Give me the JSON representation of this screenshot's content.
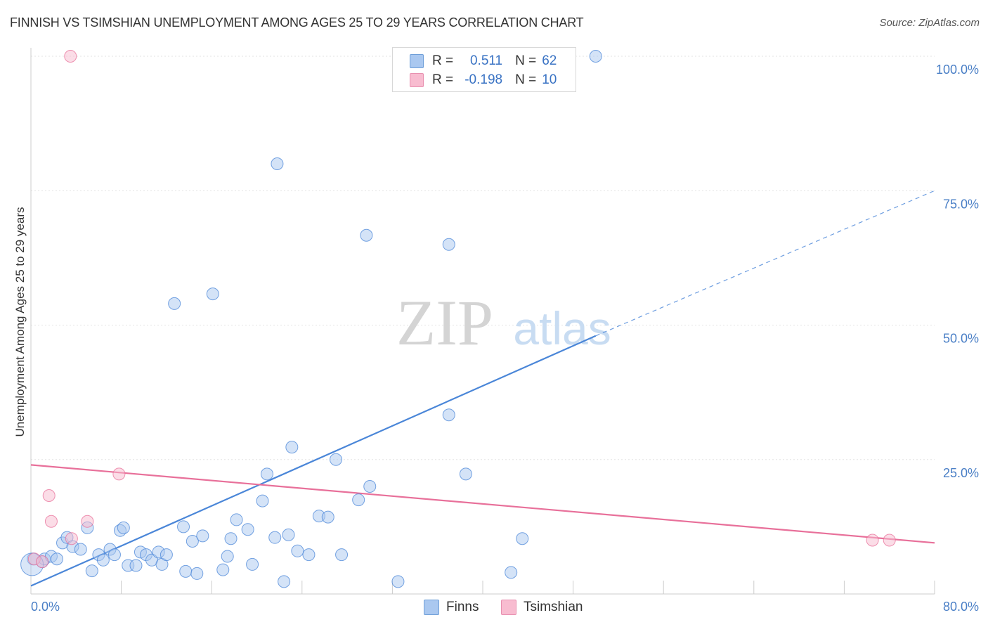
{
  "title": "FINNISH VS TSIMSHIAN UNEMPLOYMENT AMONG AGES 25 TO 29 YEARS CORRELATION CHART",
  "source": "Source: ZipAtlas.com",
  "watermark": {
    "zip": "ZIP",
    "atlas": "atlas"
  },
  "legend": {
    "rows": [
      {
        "r_label": "R =",
        "r_value": "0.511",
        "n_label": "N =",
        "n_value": "62",
        "color": "#aac8f0"
      },
      {
        "r_label": "R =",
        "r_value": "-0.198",
        "n_label": "N =",
        "n_value": "10",
        "color": "#f8bcd0"
      }
    ]
  },
  "bottom_legend": [
    {
      "label": "Finns",
      "color": "#aac8f0"
    },
    {
      "label": "Tsimshian",
      "color": "#f8bcd0"
    }
  ],
  "chart_data": {
    "type": "scatter",
    "title": "FINNISH VS TSIMSHIAN UNEMPLOYMENT AMONG AGES 25 TO 29 YEARS CORRELATION CHART",
    "xlabel": "",
    "ylabel": "Unemployment Among Ages 25 to 29 years",
    "xlim": [
      0,
      80
    ],
    "ylim": [
      0,
      100
    ],
    "x_tick_labels": [
      "0.0%",
      "80.0%"
    ],
    "y_ticks": [
      25,
      50,
      75,
      100
    ],
    "y_tick_labels": [
      "25.0%",
      "50.0%",
      "75.0%",
      "100.0%"
    ],
    "series": [
      {
        "name": "Finns",
        "color": "#4a86d8",
        "fill": "#aac8f0",
        "points": [
          [
            0.2,
            6.5
          ],
          [
            1.0,
            6.0
          ],
          [
            1.2,
            6.5
          ],
          [
            1.8,
            7.0
          ],
          [
            2.3,
            6.5
          ],
          [
            2.8,
            9.5
          ],
          [
            3.2,
            10.5
          ],
          [
            3.7,
            8.8
          ],
          [
            4.4,
            8.3
          ],
          [
            5.0,
            12.3
          ],
          [
            5.4,
            4.3
          ],
          [
            6.0,
            7.3
          ],
          [
            6.4,
            6.3
          ],
          [
            7.0,
            8.3
          ],
          [
            7.4,
            7.3
          ],
          [
            7.9,
            11.8
          ],
          [
            8.2,
            12.3
          ],
          [
            8.6,
            5.3
          ],
          [
            9.3,
            5.3
          ],
          [
            9.7,
            7.8
          ],
          [
            10.2,
            7.3
          ],
          [
            10.7,
            6.3
          ],
          [
            11.3,
            7.8
          ],
          [
            11.6,
            5.5
          ],
          [
            12.0,
            7.3
          ],
          [
            13.5,
            12.5
          ],
          [
            13.7,
            4.2
          ],
          [
            14.3,
            9.8
          ],
          [
            14.7,
            3.8
          ],
          [
            15.2,
            10.8
          ],
          [
            17.0,
            4.5
          ],
          [
            17.4,
            7.0
          ],
          [
            17.7,
            10.3
          ],
          [
            18.2,
            13.8
          ],
          [
            19.2,
            12.0
          ],
          [
            19.6,
            5.5
          ],
          [
            20.5,
            17.3
          ],
          [
            20.9,
            22.3
          ],
          [
            21.6,
            10.5
          ],
          [
            22.4,
            2.3
          ],
          [
            22.8,
            11.0
          ],
          [
            23.1,
            27.3
          ],
          [
            23.6,
            8.0
          ],
          [
            24.6,
            7.3
          ],
          [
            25.5,
            14.5
          ],
          [
            26.3,
            14.3
          ],
          [
            27.0,
            25.0
          ],
          [
            27.5,
            7.3
          ],
          [
            29.0,
            17.5
          ],
          [
            30.0,
            20.0
          ],
          [
            32.5,
            2.3
          ],
          [
            37.0,
            33.3
          ],
          [
            38.5,
            22.3
          ],
          [
            42.5,
            4.0
          ],
          [
            43.5,
            10.3
          ],
          [
            12.7,
            54.0
          ],
          [
            16.1,
            55.8
          ],
          [
            21.8,
            80.0
          ],
          [
            29.7,
            66.7
          ],
          [
            37.0,
            65.0
          ],
          [
            50.0,
            100.0
          ],
          [
            0.1,
            5.5
          ]
        ]
      },
      {
        "name": "Tsimshian",
        "color": "#e8709a",
        "fill": "#f8bcd0",
        "points": [
          [
            0.3,
            6.5
          ],
          [
            1.0,
            6.0
          ],
          [
            1.6,
            18.3
          ],
          [
            1.8,
            13.5
          ],
          [
            3.6,
            10.3
          ],
          [
            5.0,
            13.5
          ],
          [
            7.8,
            22.3
          ],
          [
            3.5,
            100.0
          ],
          [
            74.5,
            10.0
          ],
          [
            76.0,
            10.0
          ]
        ]
      }
    ],
    "trend_lines": [
      {
        "series": "Finns",
        "x": [
          0,
          50
        ],
        "y": [
          1.5,
          48.0
        ],
        "dashed_extension_to": [
          80,
          75.0
        ]
      },
      {
        "series": "Tsimshian",
        "x": [
          0,
          80
        ],
        "y": [
          24.0,
          9.5
        ]
      }
    ]
  }
}
